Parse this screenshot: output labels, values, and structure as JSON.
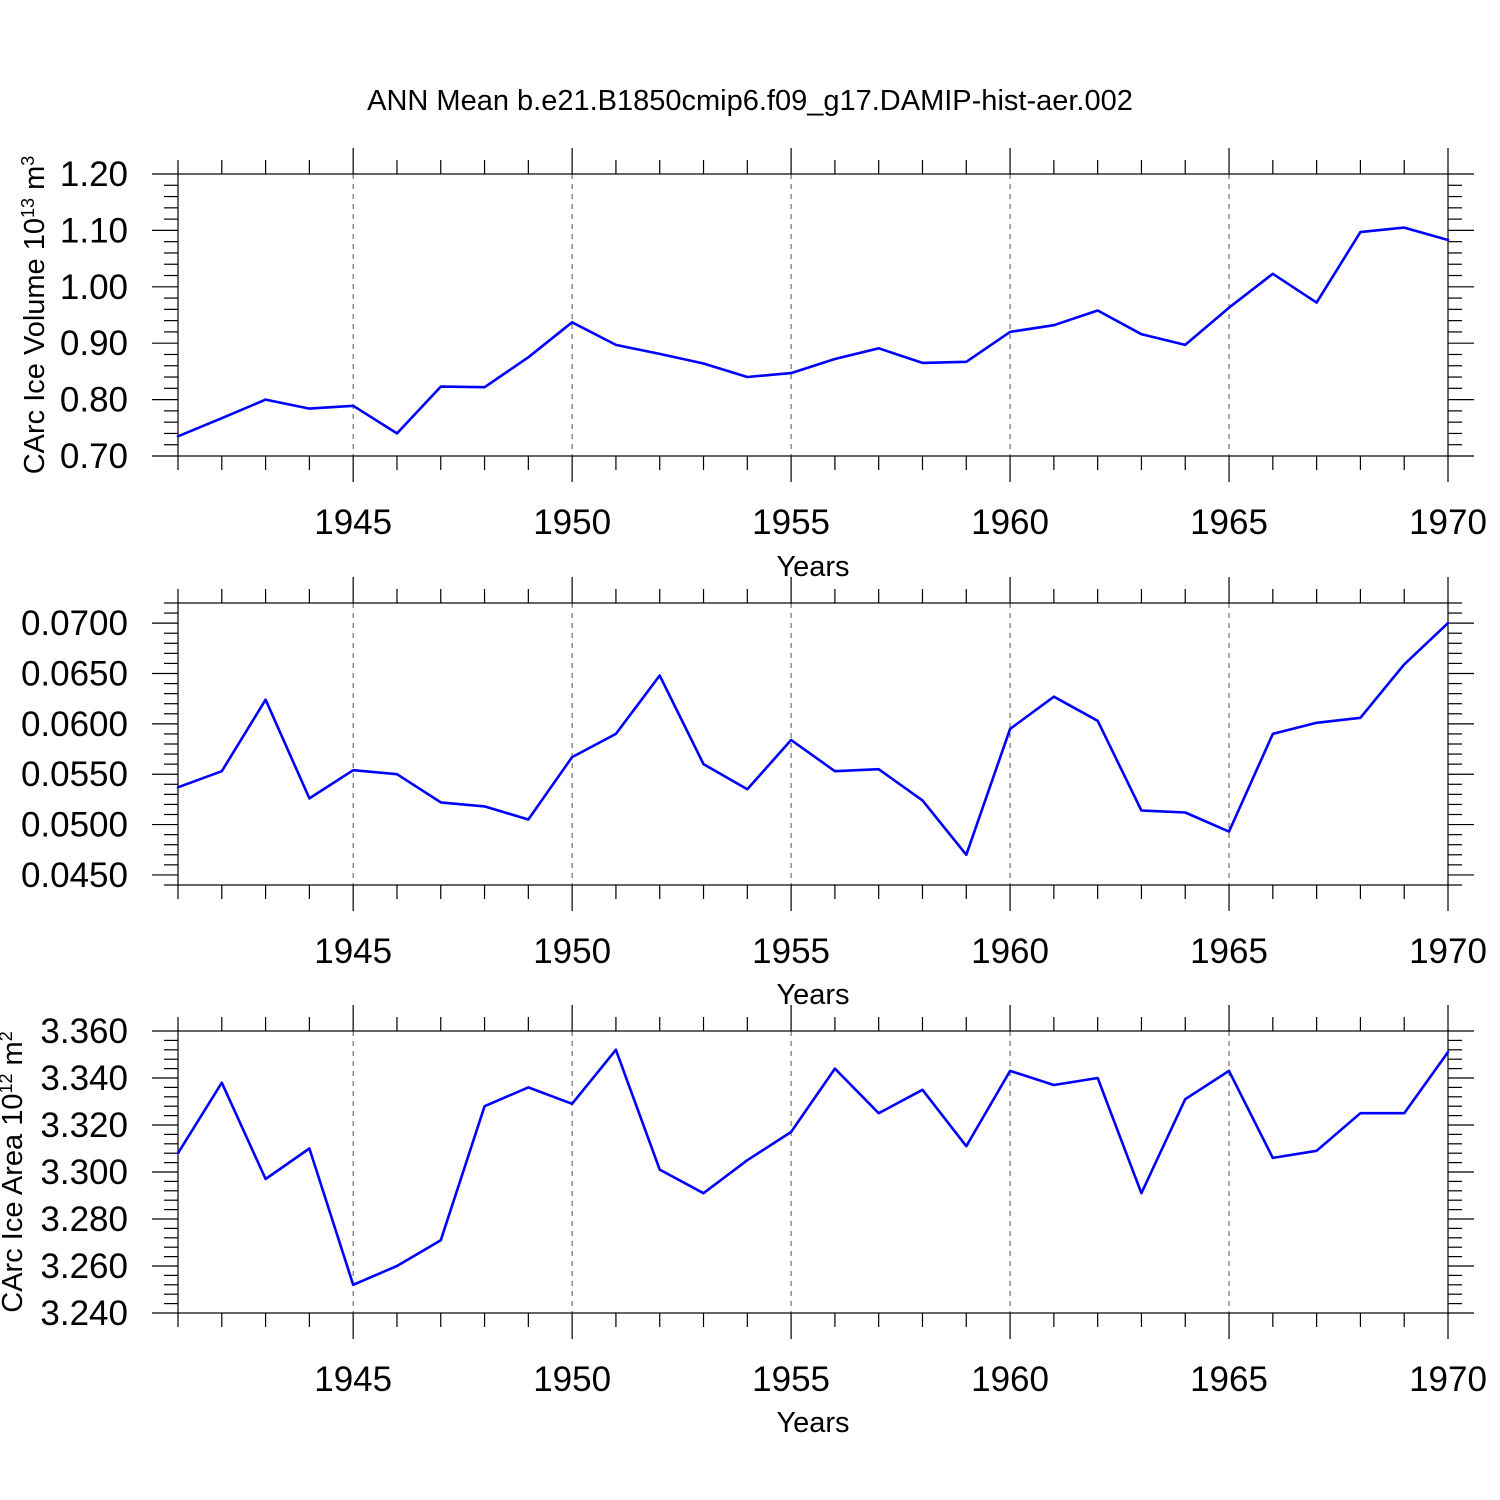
{
  "title": "ANN Mean b.e21.B1850cmip6.f09_g17.DAMIP-hist-aer.002",
  "line_color": "#0000ff",
  "chart_data": [
    {
      "type": "line",
      "xlabel": "Years",
      "ylabel": "CArc Ice Volume 10",
      "ylabel_exp": "13",
      "ylabel_unit": " m",
      "ylabel_unit_exp": "3",
      "xlim": [
        1941,
        1970
      ],
      "ylim": [
        0.7,
        1.2
      ],
      "xticks": [
        "1945",
        "1950",
        "1955",
        "1960",
        "1965",
        "1970"
      ],
      "yticks": [
        "0.70",
        "0.80",
        "0.90",
        "1.00",
        "1.10",
        "1.20"
      ],
      "grid": "vertical dashed at major x ticks",
      "x": [
        1941,
        1942,
        1943,
        1944,
        1945,
        1946,
        1947,
        1948,
        1949,
        1950,
        1951,
        1952,
        1953,
        1954,
        1955,
        1956,
        1957,
        1958,
        1959,
        1960,
        1961,
        1962,
        1963,
        1964,
        1965,
        1966,
        1967,
        1968,
        1969,
        1970
      ],
      "values": [
        0.735,
        0.767,
        0.8,
        0.784,
        0.789,
        0.74,
        0.823,
        0.822,
        0.875,
        0.937,
        0.897,
        0.881,
        0.864,
        0.84,
        0.847,
        0.872,
        0.891,
        0.865,
        0.867,
        0.92,
        0.932,
        0.958,
        0.916,
        0.897,
        0.963,
        1.023,
        0.972,
        1.097,
        1.105,
        1.083
      ]
    },
    {
      "type": "line",
      "xlabel": "Years",
      "ylabel": "",
      "xlim": [
        1941,
        1970
      ],
      "ylim": [
        0.044,
        0.072
      ],
      "xticks": [
        "1945",
        "1950",
        "1955",
        "1960",
        "1965",
        "1970"
      ],
      "yticks": [
        "0.0450",
        "0.0500",
        "0.0550",
        "0.0600",
        "0.0650",
        "0.0700"
      ],
      "grid": "vertical dashed at major x ticks",
      "x": [
        1941,
        1942,
        1943,
        1944,
        1945,
        1946,
        1947,
        1948,
        1949,
        1950,
        1951,
        1952,
        1953,
        1954,
        1955,
        1956,
        1957,
        1958,
        1959,
        1960,
        1961,
        1962,
        1963,
        1964,
        1965,
        1966,
        1967,
        1968,
        1969,
        1970
      ],
      "values": [
        0.0537,
        0.0553,
        0.0624,
        0.0526,
        0.0554,
        0.055,
        0.0522,
        0.0518,
        0.0505,
        0.0567,
        0.059,
        0.0648,
        0.056,
        0.0535,
        0.0584,
        0.0553,
        0.0555,
        0.0524,
        0.047,
        0.0595,
        0.0627,
        0.0603,
        0.0514,
        0.0512,
        0.0493,
        0.059,
        0.0601,
        0.0606,
        0.0659,
        0.07
      ]
    },
    {
      "type": "line",
      "xlabel": "Years",
      "ylabel": "CArc Ice Area 10",
      "ylabel_exp": "12",
      "ylabel_unit": " m",
      "ylabel_unit_exp": "2",
      "xlim": [
        1941,
        1970
      ],
      "ylim": [
        3.24,
        3.36
      ],
      "xticks": [
        "1945",
        "1950",
        "1955",
        "1960",
        "1965",
        "1970"
      ],
      "yticks": [
        "3.240",
        "3.260",
        "3.280",
        "3.300",
        "3.320",
        "3.340",
        "3.360"
      ],
      "grid": "vertical dashed at major x ticks",
      "x": [
        1941,
        1942,
        1943,
        1944,
        1945,
        1946,
        1947,
        1948,
        1949,
        1950,
        1951,
        1952,
        1953,
        1954,
        1955,
        1956,
        1957,
        1958,
        1959,
        1960,
        1961,
        1962,
        1963,
        1964,
        1965,
        1966,
        1967,
        1968,
        1969,
        1970
      ],
      "values": [
        3.308,
        3.338,
        3.297,
        3.31,
        3.252,
        3.26,
        3.271,
        3.328,
        3.336,
        3.329,
        3.352,
        3.301,
        3.291,
        3.305,
        3.317,
        3.344,
        3.325,
        3.335,
        3.311,
        3.343,
        3.337,
        3.34,
        3.291,
        3.331,
        3.343,
        3.306,
        3.309,
        3.325,
        3.325,
        3.351
      ]
    }
  ]
}
